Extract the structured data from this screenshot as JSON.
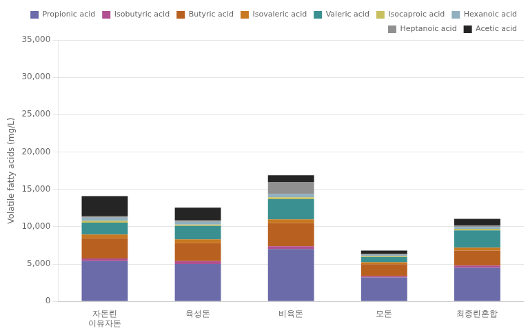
{
  "chart_data": {
    "type": "bar",
    "categories": [
      "자돈린\n이유자돈",
      "육성돈",
      "비육돈",
      "모돈",
      "최종린혼합"
    ],
    "ylabel": "Volatile fatty acids (mg/L)",
    "stacked": true,
    "grid": true,
    "legend": "upper right",
    "ylim": [
      0,
      35000
    ],
    "yticks": [
      0,
      {
        "value": 5000,
        "label": "5,000"
      },
      {
        "value": 10000,
        "label": "10,000"
      },
      {
        "value": 15000,
        "label": "15,000"
      },
      {
        "value": 20000,
        "label": "20,000"
      },
      {
        "value": 25000,
        "label": "25,000"
      },
      {
        "value": 30000,
        "label": "30,000"
      },
      {
        "value": 35000,
        "label": "35,000"
      }
    ],
    "series": [
      {
        "name": "Propionic acid",
        "color": "#6b6baa",
        "values": [
          5400,
          5000,
          7000,
          3200,
          4500
        ]
      },
      {
        "name": "Isobutyric acid",
        "color": "#b05090",
        "values": [
          350,
          400,
          380,
          180,
          300
        ]
      },
      {
        "name": "Butyric acid",
        "color": "#b86020",
        "values": [
          2700,
          2400,
          3100,
          1600,
          2000
        ]
      },
      {
        "name": "Isovaleric acid",
        "color": "#c87820",
        "values": [
          500,
          500,
          500,
          250,
          400
        ]
      },
      {
        "name": "Valeric acid",
        "color": "#3a9090",
        "values": [
          1600,
          1800,
          2700,
          700,
          2300
        ]
      },
      {
        "name": "Isocaproic acid",
        "color": "#c8c060",
        "values": [
          250,
          180,
          250,
          120,
          220
        ]
      },
      {
        "name": "Hexanoic acid",
        "color": "#90b0c0",
        "values": [
          400,
          380,
          450,
          170,
          250
        ]
      },
      {
        "name": "Heptanoic acid",
        "color": "#909090",
        "values": [
          200,
          180,
          1600,
          130,
          180
        ]
      },
      {
        "name": "Acetic acid",
        "color": "#252525",
        "values": [
          2700,
          1700,
          900,
          450,
          900
        ]
      }
    ]
  }
}
